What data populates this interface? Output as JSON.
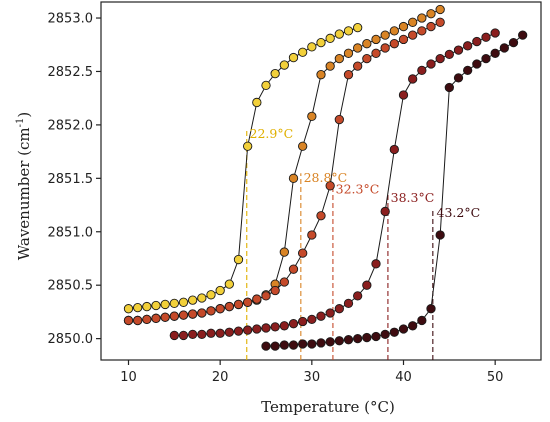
{
  "chart_data": {
    "type": "scatter",
    "xlabel": "Temperature (°C)",
    "ylabel_main": "Wavenumber (cm",
    "ylabel_sup": "-1",
    "ylabel_end": ")",
    "xlim": [
      7,
      55
    ],
    "ylim": [
      2849.8,
      2853.15
    ],
    "x_ticks": [
      10,
      20,
      30,
      40,
      50
    ],
    "y_ticks": [
      2850.0,
      2850.5,
      2851.0,
      2851.5,
      2852.0,
      2852.5,
      2853.0
    ],
    "x_tick_labels": [
      "10",
      "20",
      "30",
      "40",
      "50"
    ],
    "y_tick_labels": [
      "2850.0",
      "2850.5",
      "2851.0",
      "2851.5",
      "2852.0",
      "2852.5",
      "2853.0"
    ],
    "grid": false,
    "series": [
      {
        "color": "#f2d03a",
        "transition": 22.9,
        "annotation": "22.9°C",
        "annotation_color": "#e0b000",
        "annotation_pos": [
          23.2,
          2851.92
        ],
        "x": [
          10,
          11,
          12,
          13,
          14,
          15,
          16,
          17,
          18,
          19,
          20,
          21,
          22,
          23,
          24,
          25,
          26,
          27,
          28,
          29,
          30,
          31,
          32,
          33,
          34,
          35
        ],
        "y": [
          2850.28,
          2850.29,
          2850.3,
          2850.31,
          2850.32,
          2850.33,
          2850.34,
          2850.36,
          2850.38,
          2850.41,
          2850.45,
          2850.51,
          2850.74,
          2851.8,
          2852.21,
          2852.37,
          2852.48,
          2852.56,
          2852.63,
          2852.68,
          2852.73,
          2852.77,
          2852.81,
          2852.85,
          2852.88,
          2852.91
        ]
      },
      {
        "color": "#d98425",
        "transition": 28.8,
        "annotation": "28.8°C",
        "annotation_color": "#d98425",
        "annotation_pos": [
          29.1,
          2851.51
        ],
        "x": [
          10,
          11,
          12,
          13,
          14,
          15,
          16,
          17,
          18,
          19,
          20,
          21,
          22,
          23,
          24,
          25,
          26,
          27,
          28,
          29,
          30,
          31,
          32,
          33,
          34,
          35,
          36,
          37,
          38,
          39,
          40,
          41,
          42,
          43,
          44
        ],
        "y": [
          2850.17,
          2850.17,
          2850.18,
          2850.19,
          2850.2,
          2850.21,
          2850.22,
          2850.23,
          2850.24,
          2850.26,
          2850.28,
          2850.3,
          2850.32,
          2850.34,
          2850.36,
          2850.41,
          2850.51,
          2850.81,
          2851.5,
          2851.8,
          2852.08,
          2852.47,
          2852.55,
          2852.62,
          2852.67,
          2852.72,
          2852.76,
          2852.8,
          2852.84,
          2852.88,
          2852.92,
          2852.96,
          2853.0,
          2853.04,
          2853.08
        ]
      },
      {
        "color": "#c54a2a",
        "transition": 32.3,
        "annotation": "32.3°C",
        "annotation_color": "#c54a2a",
        "annotation_pos": [
          32.6,
          2851.4
        ],
        "x": [
          10,
          11,
          12,
          13,
          14,
          15,
          16,
          17,
          18,
          19,
          20,
          21,
          22,
          23,
          24,
          25,
          26,
          27,
          28,
          29,
          30,
          31,
          32,
          33,
          34,
          35,
          36,
          37,
          38,
          39,
          40,
          41,
          42,
          43,
          44
        ],
        "y": [
          2850.17,
          2850.17,
          2850.18,
          2850.19,
          2850.2,
          2850.21,
          2850.22,
          2850.23,
          2850.24,
          2850.26,
          2850.28,
          2850.3,
          2850.32,
          2850.34,
          2850.37,
          2850.4,
          2850.45,
          2850.53,
          2850.65,
          2850.8,
          2850.97,
          2851.15,
          2851.43,
          2852.05,
          2852.47,
          2852.55,
          2852.62,
          2852.67,
          2852.72,
          2852.76,
          2852.8,
          2852.84,
          2852.88,
          2852.92,
          2852.96
        ]
      },
      {
        "color": "#8a1e1e",
        "transition": 38.3,
        "annotation": "38.3°C",
        "annotation_color": "#8a1e1e",
        "annotation_pos": [
          38.6,
          2851.32
        ],
        "x": [
          15,
          16,
          17,
          18,
          19,
          20,
          21,
          22,
          23,
          24,
          25,
          26,
          27,
          28,
          29,
          30,
          31,
          32,
          33,
          34,
          35,
          36,
          37,
          38,
          39,
          40,
          41,
          42,
          43,
          44,
          45,
          46,
          47,
          48,
          49,
          50
        ],
        "y": [
          2850.03,
          2850.03,
          2850.04,
          2850.04,
          2850.05,
          2850.05,
          2850.06,
          2850.07,
          2850.08,
          2850.09,
          2850.1,
          2850.11,
          2850.12,
          2850.14,
          2850.16,
          2850.18,
          2850.21,
          2850.24,
          2850.28,
          2850.33,
          2850.4,
          2850.5,
          2850.7,
          2851.19,
          2851.77,
          2852.28,
          2852.43,
          2852.51,
          2852.57,
          2852.62,
          2852.66,
          2852.7,
          2852.74,
          2852.78,
          2852.82,
          2852.86
        ]
      },
      {
        "color": "#3e0c10",
        "transition": 43.2,
        "annotation": "43.2°C",
        "annotation_color": "#3e0c10",
        "annotation_pos": [
          43.6,
          2851.18
        ],
        "x": [
          25,
          26,
          27,
          28,
          29,
          30,
          31,
          32,
          33,
          34,
          35,
          36,
          37,
          38,
          39,
          40,
          41,
          42,
          43,
          44,
          45,
          46,
          47,
          48,
          49,
          50,
          51,
          52,
          53
        ],
        "y": [
          2849.93,
          2849.93,
          2849.94,
          2849.94,
          2849.95,
          2849.95,
          2849.96,
          2849.97,
          2849.98,
          2849.99,
          2850.0,
          2850.01,
          2850.02,
          2850.04,
          2850.06,
          2850.09,
          2850.12,
          2850.17,
          2850.28,
          2850.97,
          2852.35,
          2852.44,
          2852.51,
          2852.57,
          2852.62,
          2852.67,
          2852.72,
          2852.77,
          2852.84
        ]
      }
    ]
  }
}
